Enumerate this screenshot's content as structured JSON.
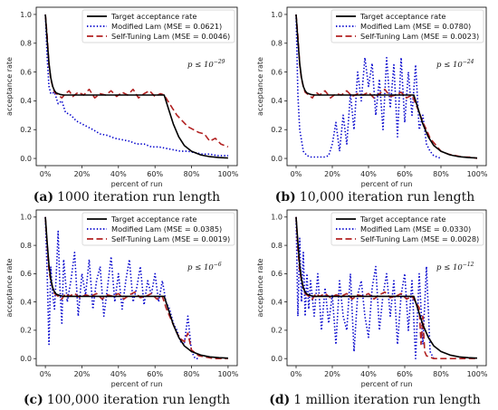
{
  "chart_data": [
    {
      "type": "line",
      "caption_label": "(a)",
      "caption_text": "1000 iteration run length",
      "xlabel": "percent of run",
      "ylabel": "acceptance rate",
      "xlim": [
        0,
        100
      ],
      "ylim": [
        0,
        1
      ],
      "xticks": [
        "0%",
        "20%",
        "40%",
        "60%",
        "80%",
        "100%"
      ],
      "yticks": [
        "0.0",
        "0.2",
        "0.4",
        "0.6",
        "0.8",
        "1.0"
      ],
      "annotation_base": "p ≤ 10",
      "annotation_exp": "−29",
      "legend": [
        "Target acceptance rate",
        "Modified Lam (MSE = 0.0621)",
        "Self-Tuning Lam (MSE = 0.0046)"
      ],
      "series": [
        {
          "name": "Target acceptance rate",
          "color": "#000000",
          "style": "solid",
          "x": [
            0,
            1,
            2,
            3,
            4,
            5,
            6,
            8,
            10,
            12,
            15,
            20,
            30,
            40,
            50,
            60,
            65,
            67,
            70,
            73,
            76,
            80,
            85,
            90,
            95,
            100
          ],
          "y": [
            1.0,
            0.82,
            0.66,
            0.56,
            0.5,
            0.47,
            0.455,
            0.445,
            0.44,
            0.44,
            0.44,
            0.44,
            0.44,
            0.44,
            0.44,
            0.44,
            0.44,
            0.36,
            0.24,
            0.15,
            0.09,
            0.05,
            0.025,
            0.012,
            0.006,
            0.003
          ]
        },
        {
          "name": "Modified Lam (MSE = 0.0621)",
          "color": "#0000cc",
          "style": "dotted",
          "x": [
            0,
            1,
            2,
            3,
            5,
            7,
            9,
            11,
            14,
            17,
            20,
            23,
            26,
            30,
            34,
            38,
            42,
            46,
            50,
            54,
            58,
            62,
            66,
            70,
            74,
            78,
            82,
            86,
            90,
            94,
            98,
            100
          ],
          "y": [
            1.0,
            0.7,
            0.5,
            0.45,
            0.46,
            0.38,
            0.4,
            0.32,
            0.3,
            0.26,
            0.24,
            0.22,
            0.2,
            0.17,
            0.16,
            0.14,
            0.13,
            0.12,
            0.1,
            0.1,
            0.08,
            0.08,
            0.07,
            0.06,
            0.05,
            0.05,
            0.04,
            0.03,
            0.03,
            0.02,
            0.02,
            0.02
          ]
        },
        {
          "name": "Self-Tuning Lam (MSE = 0.0046)",
          "color": "#b22222",
          "style": "dashed",
          "x": [
            0,
            1,
            2,
            3,
            4,
            5,
            7,
            9,
            11,
            13,
            15,
            18,
            21,
            24,
            27,
            30,
            33,
            36,
            39,
            42,
            45,
            48,
            51,
            54,
            57,
            60,
            63,
            65,
            67,
            69,
            72,
            75,
            78,
            81,
            84,
            87,
            90,
            93,
            96,
            100
          ],
          "y": [
            1.0,
            0.85,
            0.65,
            0.55,
            0.5,
            0.46,
            0.44,
            0.42,
            0.45,
            0.47,
            0.43,
            0.46,
            0.44,
            0.48,
            0.42,
            0.45,
            0.44,
            0.47,
            0.43,
            0.46,
            0.44,
            0.48,
            0.42,
            0.45,
            0.47,
            0.43,
            0.45,
            0.44,
            0.4,
            0.36,
            0.3,
            0.26,
            0.22,
            0.2,
            0.18,
            0.17,
            0.12,
            0.14,
            0.1,
            0.08
          ]
        }
      ]
    },
    {
      "type": "line",
      "caption_label": "(b)",
      "caption_text": "10,000 iteration run length",
      "xlabel": "percent of run",
      "ylabel": "acceptance rate",
      "xlim": [
        0,
        100
      ],
      "ylim": [
        0,
        1
      ],
      "xticks": [
        "0%",
        "20%",
        "40%",
        "60%",
        "80%",
        "100%"
      ],
      "yticks": [
        "0.0",
        "0.2",
        "0.4",
        "0.6",
        "0.8",
        "1.0"
      ],
      "annotation_base": "p ≤ 10",
      "annotation_exp": "−24",
      "legend": [
        "Target acceptance rate",
        "Modified Lam (MSE = 0.0780)",
        "Self-Tuning Lam (MSE = 0.0023)"
      ],
      "series": [
        {
          "name": "Target acceptance rate",
          "color": "#000000",
          "style": "solid",
          "x": [
            0,
            1,
            2,
            3,
            4,
            5,
            6,
            8,
            10,
            12,
            15,
            20,
            30,
            40,
            50,
            60,
            65,
            67,
            70,
            73,
            76,
            80,
            85,
            90,
            95,
            100
          ],
          "y": [
            1.0,
            0.82,
            0.66,
            0.56,
            0.5,
            0.47,
            0.455,
            0.445,
            0.44,
            0.44,
            0.44,
            0.44,
            0.44,
            0.44,
            0.44,
            0.44,
            0.44,
            0.36,
            0.24,
            0.15,
            0.09,
            0.05,
            0.025,
            0.012,
            0.006,
            0.003
          ]
        },
        {
          "name": "Modified Lam (MSE = 0.0780)",
          "color": "#0000cc",
          "style": "dotted",
          "x": [
            0,
            1,
            2,
            4,
            6,
            8,
            10,
            12,
            14,
            16,
            18,
            20,
            22,
            24,
            26,
            28,
            30,
            32,
            34,
            36,
            38,
            40,
            42,
            44,
            46,
            48,
            50,
            52,
            54,
            56,
            58,
            60,
            62,
            64,
            66,
            68,
            70,
            72,
            74,
            76,
            78,
            80
          ],
          "y": [
            1.0,
            0.44,
            0.2,
            0.05,
            0.02,
            0.01,
            0.01,
            0.01,
            0.01,
            0.01,
            0.02,
            0.1,
            0.25,
            0.05,
            0.3,
            0.1,
            0.45,
            0.2,
            0.6,
            0.4,
            0.7,
            0.5,
            0.66,
            0.3,
            0.55,
            0.2,
            0.7,
            0.35,
            0.65,
            0.15,
            0.7,
            0.25,
            0.6,
            0.3,
            0.65,
            0.2,
            0.3,
            0.1,
            0.05,
            0.02,
            0.01,
            0.0
          ]
        },
        {
          "name": "Self-Tuning Lam (MSE = 0.0023)",
          "color": "#b22222",
          "style": "dashed",
          "x": [
            0,
            1,
            2,
            3,
            4,
            5,
            7,
            9,
            11,
            13,
            16,
            19,
            22,
            25,
            28,
            31,
            34,
            37,
            40,
            43,
            46,
            49,
            52,
            55,
            58,
            61,
            64,
            66,
            68,
            70,
            72,
            74,
            76,
            78,
            80,
            84,
            88,
            92,
            96,
            100
          ],
          "y": [
            1.0,
            0.85,
            0.65,
            0.55,
            0.5,
            0.46,
            0.44,
            0.42,
            0.46,
            0.44,
            0.47,
            0.42,
            0.45,
            0.44,
            0.47,
            0.43,
            0.45,
            0.44,
            0.46,
            0.42,
            0.45,
            0.48,
            0.43,
            0.44,
            0.46,
            0.42,
            0.44,
            0.38,
            0.32,
            0.25,
            0.2,
            0.14,
            0.11,
            0.08,
            0.05,
            0.03,
            0.02,
            0.01,
            0.01,
            0.0
          ]
        }
      ]
    },
    {
      "type": "line",
      "caption_label": "(c)",
      "caption_text": "100,000 iteration run length",
      "xlabel": "percent of run",
      "ylabel": "acceptance rate",
      "xlim": [
        0,
        100
      ],
      "ylim": [
        0,
        1
      ],
      "xticks": [
        "0%",
        "20%",
        "40%",
        "60%",
        "80%",
        "100%"
      ],
      "yticks": [
        "0.0",
        "0.2",
        "0.4",
        "0.6",
        "0.8",
        "1.0"
      ],
      "annotation_base": "p ≤ 10",
      "annotation_exp": "−6",
      "legend": [
        "Target acceptance rate",
        "Modified Lam (MSE = 0.0385)",
        "Self-Tuning Lam (MSE = 0.0019)"
      ],
      "series": [
        {
          "name": "Target acceptance rate",
          "color": "#000000",
          "style": "solid",
          "x": [
            0,
            1,
            2,
            3,
            4,
            5,
            6,
            8,
            10,
            12,
            15,
            20,
            30,
            40,
            50,
            60,
            65,
            67,
            70,
            73,
            76,
            80,
            85,
            90,
            95,
            100
          ],
          "y": [
            1.0,
            0.82,
            0.66,
            0.56,
            0.5,
            0.47,
            0.455,
            0.445,
            0.44,
            0.44,
            0.44,
            0.44,
            0.44,
            0.44,
            0.44,
            0.44,
            0.44,
            0.36,
            0.24,
            0.15,
            0.09,
            0.05,
            0.025,
            0.012,
            0.006,
            0.003
          ]
        },
        {
          "name": "Modified Lam (MSE = 0.0385)",
          "color": "#0000cc",
          "style": "dotted",
          "x": [
            0,
            1,
            2,
            3,
            4,
            5,
            6,
            7,
            8,
            9,
            10,
            12,
            14,
            16,
            18,
            20,
            22,
            24,
            26,
            28,
            30,
            32,
            34,
            36,
            38,
            40,
            42,
            44,
            46,
            48,
            50,
            52,
            54,
            56,
            58,
            60,
            62,
            64,
            66,
            68,
            70,
            72,
            74,
            76,
            78,
            80,
            82,
            84
          ],
          "y": [
            1.0,
            0.6,
            0.1,
            0.65,
            0.45,
            0.35,
            0.6,
            0.9,
            0.5,
            0.25,
            0.7,
            0.4,
            0.55,
            0.75,
            0.3,
            0.6,
            0.45,
            0.7,
            0.35,
            0.55,
            0.65,
            0.3,
            0.5,
            0.72,
            0.4,
            0.6,
            0.35,
            0.55,
            0.7,
            0.4,
            0.5,
            0.65,
            0.38,
            0.55,
            0.45,
            0.6,
            0.4,
            0.55,
            0.4,
            0.35,
            0.25,
            0.2,
            0.12,
            0.1,
            0.3,
            0.05,
            0.0,
            0.0
          ]
        },
        {
          "name": "Self-Tuning Lam (MSE = 0.0019)",
          "color": "#b22222",
          "style": "dashed",
          "x": [
            0,
            1,
            2,
            3,
            4,
            5,
            7,
            9,
            11,
            13,
            16,
            19,
            22,
            25,
            28,
            31,
            34,
            37,
            40,
            43,
            46,
            49,
            52,
            55,
            58,
            61,
            64,
            66,
            68,
            70,
            72,
            74,
            76,
            78,
            80,
            82,
            84,
            88,
            92,
            100
          ],
          "y": [
            1.0,
            0.8,
            0.62,
            0.55,
            0.5,
            0.46,
            0.44,
            0.42,
            0.46,
            0.44,
            0.46,
            0.43,
            0.45,
            0.44,
            0.46,
            0.42,
            0.45,
            0.44,
            0.46,
            0.42,
            0.45,
            0.47,
            0.43,
            0.44,
            0.46,
            0.42,
            0.44,
            0.36,
            0.3,
            0.24,
            0.18,
            0.14,
            0.12,
            0.18,
            0.06,
            0.04,
            0.02,
            0.01,
            0.0,
            0.0
          ]
        }
      ]
    },
    {
      "type": "line",
      "caption_label": "(d)",
      "caption_text": "1 million iteration run length",
      "xlabel": "percent of run",
      "ylabel": "acceptance rate",
      "xlim": [
        0,
        100
      ],
      "ylim": [
        0,
        1
      ],
      "xticks": [
        "0%",
        "20%",
        "40%",
        "60%",
        "80%",
        "100%"
      ],
      "yticks": [
        "0.0",
        "0.2",
        "0.4",
        "0.6",
        "0.8",
        "1.0"
      ],
      "annotation_base": "p ≤ 10",
      "annotation_exp": "−12",
      "legend": [
        "Target acceptance rate",
        "Modified Lam (MSE = 0.0330)",
        "Self-Tuning Lam (MSE = 0.0028)"
      ],
      "series": [
        {
          "name": "Target acceptance rate",
          "color": "#000000",
          "style": "solid",
          "x": [
            0,
            1,
            2,
            3,
            4,
            5,
            6,
            8,
            10,
            12,
            15,
            20,
            30,
            40,
            50,
            60,
            65,
            67,
            70,
            73,
            76,
            80,
            85,
            90,
            95,
            100
          ],
          "y": [
            1.0,
            0.82,
            0.66,
            0.56,
            0.5,
            0.47,
            0.455,
            0.445,
            0.44,
            0.44,
            0.44,
            0.44,
            0.44,
            0.44,
            0.44,
            0.44,
            0.44,
            0.36,
            0.24,
            0.15,
            0.09,
            0.05,
            0.025,
            0.012,
            0.006,
            0.003
          ]
        },
        {
          "name": "Modified Lam (MSE = 0.0330)",
          "color": "#0000cc",
          "style": "dotted",
          "x": [
            0,
            1,
            2,
            3,
            4,
            5,
            6,
            7,
            8,
            10,
            12,
            14,
            16,
            18,
            20,
            22,
            24,
            26,
            28,
            30,
            32,
            34,
            36,
            38,
            40,
            42,
            44,
            46,
            48,
            50,
            52,
            54,
            56,
            58,
            60,
            62,
            64,
            66,
            68,
            70,
            72,
            74,
            76
          ],
          "y": [
            1.0,
            0.3,
            0.85,
            0.4,
            0.75,
            0.3,
            0.6,
            0.35,
            0.55,
            0.3,
            0.6,
            0.2,
            0.5,
            0.25,
            0.45,
            0.1,
            0.55,
            0.3,
            0.2,
            0.6,
            0.05,
            0.45,
            0.55,
            0.3,
            0.15,
            0.5,
            0.65,
            0.2,
            0.45,
            0.6,
            0.3,
            0.55,
            0.1,
            0.45,
            0.6,
            0.2,
            0.55,
            0.0,
            0.6,
            0.1,
            0.65,
            0.05,
            0.0
          ]
        },
        {
          "name": "Self-Tuning Lam (MSE = 0.0028)",
          "color": "#b22222",
          "style": "dashed",
          "x": [
            0,
            1,
            2,
            3,
            4,
            5,
            7,
            9,
            11,
            13,
            16,
            19,
            22,
            25,
            28,
            31,
            34,
            37,
            40,
            43,
            46,
            49,
            52,
            55,
            58,
            61,
            64,
            66,
            68,
            69,
            70,
            71,
            72,
            74,
            76,
            80,
            84,
            90,
            95,
            100
          ],
          "y": [
            1.0,
            0.78,
            0.62,
            0.55,
            0.5,
            0.46,
            0.44,
            0.42,
            0.46,
            0.44,
            0.46,
            0.43,
            0.45,
            0.44,
            0.46,
            0.42,
            0.45,
            0.44,
            0.46,
            0.42,
            0.45,
            0.47,
            0.43,
            0.44,
            0.46,
            0.42,
            0.44,
            0.4,
            0.36,
            0.1,
            0.3,
            0.05,
            0.02,
            0.01,
            0.0,
            0.0,
            0.0,
            0.0,
            0.0,
            0.0
          ]
        }
      ]
    }
  ]
}
